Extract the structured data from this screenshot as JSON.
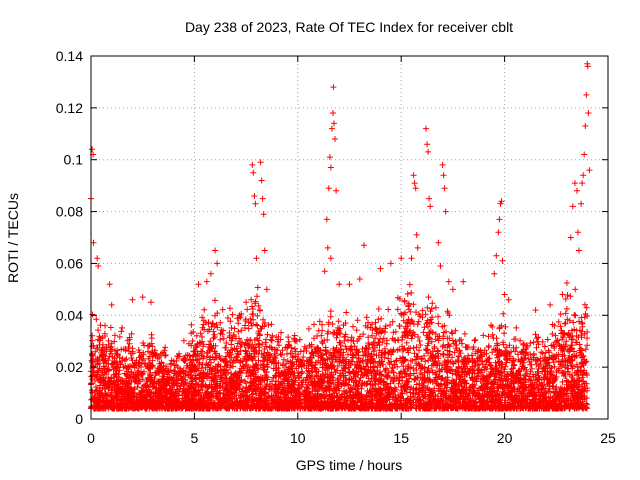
{
  "chart_data": {
    "type": "scatter",
    "title": "Day 238 of 2023, Rate Of TEC Index for receiver cblt",
    "xlabel": "GPS time / hours",
    "ylabel": "ROTI / TECUs",
    "xlim": [
      0,
      25
    ],
    "ylim": [
      0,
      0.14
    ],
    "x_ticks": [
      0,
      5,
      10,
      15,
      20,
      25
    ],
    "y_ticks": [
      0,
      0.02,
      0.04,
      0.06,
      0.08,
      0.1,
      0.12,
      0.14
    ],
    "x_tick_labels": [
      "0",
      "5",
      "10",
      "15",
      "20",
      "25"
    ],
    "y_tick_labels": [
      "0",
      "0.02",
      "0.04",
      "0.06",
      "0.08",
      "0.1",
      "0.12",
      "0.14"
    ],
    "grid": true,
    "marker": "+",
    "marker_color": "#ff0000",
    "series": [
      {
        "name": "",
        "points": [
          [
            0.0,
            0.085
          ],
          [
            0.05,
            0.104
          ],
          [
            0.1,
            0.102
          ],
          [
            0.12,
            0.068
          ],
          [
            0.3,
            0.062
          ],
          [
            0.35,
            0.059
          ],
          [
            0.9,
            0.052
          ],
          [
            1.0,
            0.044
          ],
          [
            2.0,
            0.046
          ],
          [
            2.5,
            0.047
          ],
          [
            2.9,
            0.045
          ],
          [
            5.2,
            0.052
          ],
          [
            5.6,
            0.053
          ],
          [
            5.8,
            0.056
          ],
          [
            6.0,
            0.065
          ],
          [
            6.1,
            0.06
          ],
          [
            7.5,
            0.045
          ],
          [
            7.8,
            0.098
          ],
          [
            7.85,
            0.095
          ],
          [
            7.9,
            0.086
          ],
          [
            7.95,
            0.083
          ],
          [
            8.0,
            0.062
          ],
          [
            8.2,
            0.099
          ],
          [
            8.25,
            0.092
          ],
          [
            8.3,
            0.085
          ],
          [
            8.35,
            0.079
          ],
          [
            8.4,
            0.065
          ],
          [
            8.5,
            0.05
          ],
          [
            11.4,
            0.077
          ],
          [
            11.45,
            0.066
          ],
          [
            11.5,
            0.089
          ],
          [
            11.55,
            0.101
          ],
          [
            11.6,
            0.097
          ],
          [
            11.65,
            0.112
          ],
          [
            11.7,
            0.118
          ],
          [
            11.72,
            0.128
          ],
          [
            11.75,
            0.114
          ],
          [
            11.8,
            0.108
          ],
          [
            11.85,
            0.088
          ],
          [
            11.6,
            0.062
          ],
          [
            11.3,
            0.057
          ],
          [
            12.0,
            0.052
          ],
          [
            12.5,
            0.052
          ],
          [
            13.0,
            0.054
          ],
          [
            13.2,
            0.067
          ],
          [
            14.0,
            0.058
          ],
          [
            14.5,
            0.06
          ],
          [
            15.0,
            0.062
          ],
          [
            15.5,
            0.062
          ],
          [
            15.6,
            0.094
          ],
          [
            15.65,
            0.091
          ],
          [
            15.7,
            0.089
          ],
          [
            15.75,
            0.071
          ],
          [
            15.8,
            0.066
          ],
          [
            16.2,
            0.112
          ],
          [
            16.25,
            0.106
          ],
          [
            16.3,
            0.103
          ],
          [
            16.35,
            0.085
          ],
          [
            16.4,
            0.082
          ],
          [
            16.8,
            0.068
          ],
          [
            16.9,
            0.059
          ],
          [
            17.0,
            0.098
          ],
          [
            17.05,
            0.094
          ],
          [
            17.1,
            0.089
          ],
          [
            17.15,
            0.08
          ],
          [
            17.3,
            0.053
          ],
          [
            17.5,
            0.05
          ],
          [
            18.0,
            0.053
          ],
          [
            19.5,
            0.056
          ],
          [
            19.6,
            0.063
          ],
          [
            19.7,
            0.072
          ],
          [
            19.75,
            0.077
          ],
          [
            19.8,
            0.083
          ],
          [
            19.85,
            0.084
          ],
          [
            19.9,
            0.061
          ],
          [
            20.0,
            0.048
          ],
          [
            20.2,
            0.046
          ],
          [
            21.5,
            0.042
          ],
          [
            22.2,
            0.044
          ],
          [
            22.8,
            0.048
          ],
          [
            23.2,
            0.07
          ],
          [
            23.3,
            0.082
          ],
          [
            23.4,
            0.091
          ],
          [
            23.5,
            0.088
          ],
          [
            23.55,
            0.072
          ],
          [
            23.6,
            0.065
          ],
          [
            23.7,
            0.083
          ],
          [
            23.75,
            0.091
          ],
          [
            23.8,
            0.094
          ],
          [
            23.85,
            0.102
          ],
          [
            23.9,
            0.113
          ],
          [
            23.95,
            0.125
          ],
          [
            24.0,
            0.137
          ],
          [
            24.02,
            0.136
          ],
          [
            24.05,
            0.118
          ],
          [
            24.1,
            0.096
          ]
        ],
        "density_profile": {
          "note_hours": [
            0,
            1,
            2,
            3,
            4,
            5,
            6,
            7,
            8,
            9,
            10,
            11,
            12,
            13,
            14,
            15,
            16,
            17,
            18,
            19,
            20,
            21,
            22,
            23,
            24
          ],
          "typical_max": [
            0.04,
            0.032,
            0.03,
            0.03,
            0.022,
            0.035,
            0.04,
            0.038,
            0.045,
            0.03,
            0.03,
            0.035,
            0.038,
            0.035,
            0.04,
            0.045,
            0.045,
            0.04,
            0.032,
            0.03,
            0.035,
            0.03,
            0.032,
            0.045,
            0.04
          ],
          "floor": 0.004,
          "x_range": [
            0.0,
            24.0
          ],
          "points_per_hour": 260
        }
      }
    ]
  }
}
